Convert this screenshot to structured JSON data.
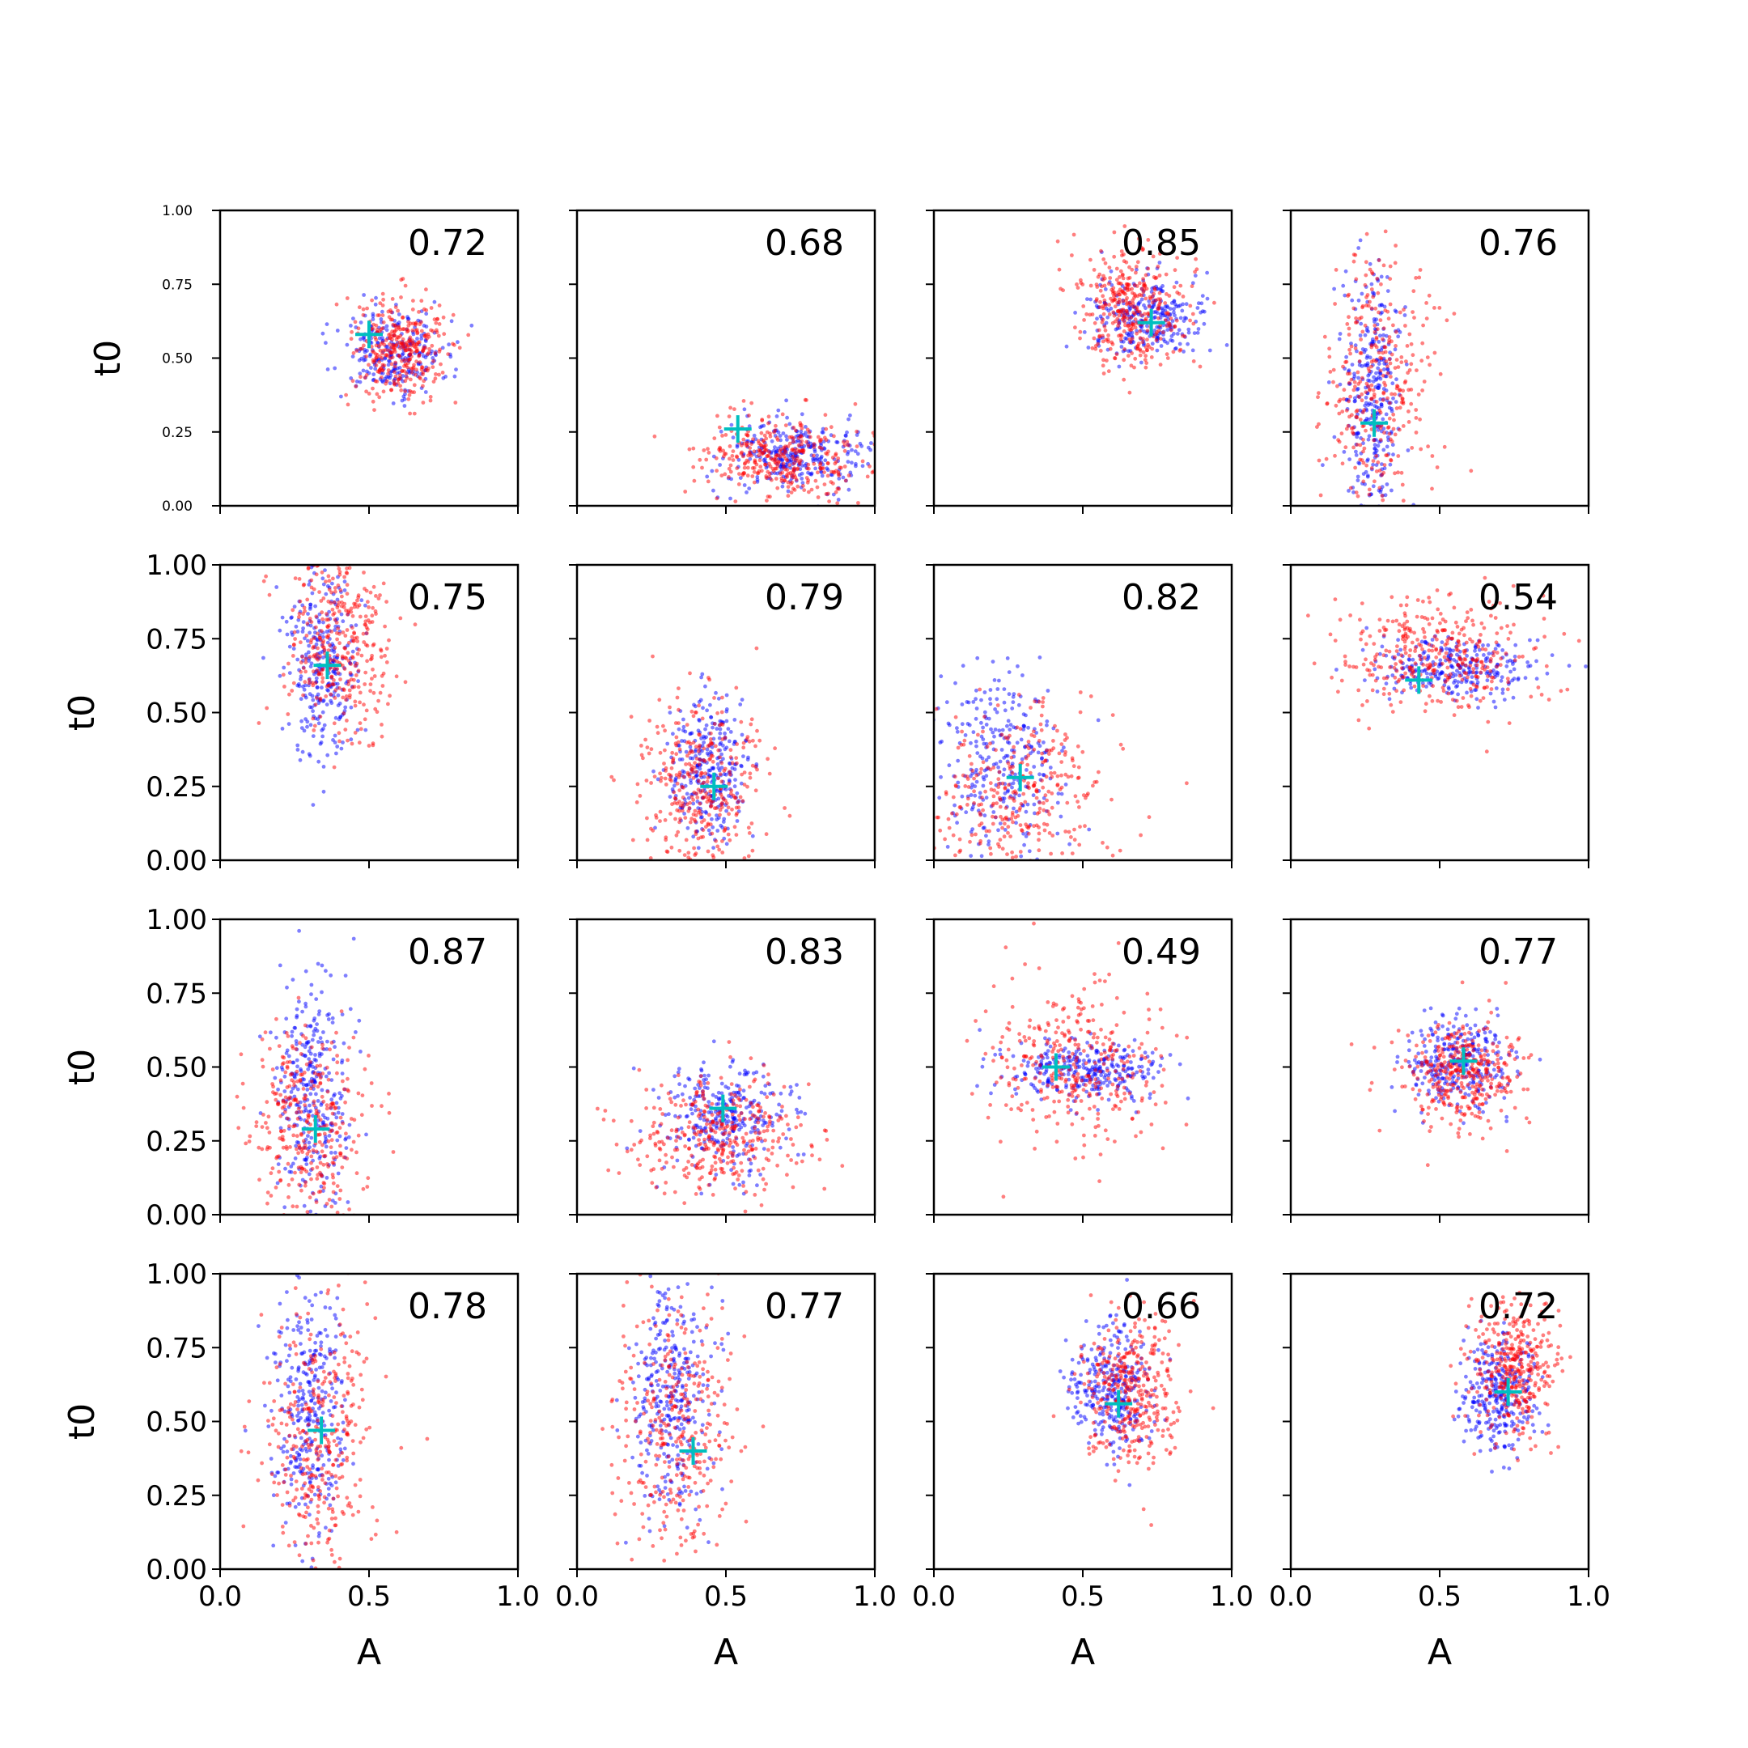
{
  "figure": {
    "colors": {
      "series_a": "#0000ff",
      "series_b": "#ff0000",
      "marker": "#00bfbf"
    },
    "xlabel": "A",
    "ylabel": "t0"
  },
  "chart_data": {
    "type": "scatter",
    "layout": "4x4 grid, shared x axes per column, y tick labels on first column",
    "xlim": [
      0,
      1
    ],
    "ylim": [
      0,
      1
    ],
    "xticks": [
      "0.0",
      "0.5",
      "1.0"
    ],
    "yticks": [
      "0.00",
      "0.25",
      "0.50",
      "0.75",
      "1.00"
    ],
    "panels": [
      {
        "score": "0.72",
        "marker": [
          0.5,
          0.58
        ],
        "clouds": [
          {
            "series": "a",
            "cx": 0.58,
            "cy": 0.52,
            "sx": 0.09,
            "sy": 0.07,
            "n": 260
          },
          {
            "series": "b",
            "cx": 0.6,
            "cy": 0.53,
            "sx": 0.08,
            "sy": 0.09,
            "n": 340
          }
        ]
      },
      {
        "score": "0.68",
        "marker": [
          0.54,
          0.26
        ],
        "clouds": [
          {
            "series": "a",
            "cx": 0.73,
            "cy": 0.17,
            "sx": 0.12,
            "sy": 0.06,
            "n": 300
          },
          {
            "series": "b",
            "cx": 0.7,
            "cy": 0.16,
            "sx": 0.14,
            "sy": 0.07,
            "n": 360
          }
        ]
      },
      {
        "score": "0.85",
        "marker": [
          0.73,
          0.62
        ],
        "clouds": [
          {
            "series": "a",
            "cx": 0.72,
            "cy": 0.63,
            "sx": 0.1,
            "sy": 0.07,
            "n": 280
          },
          {
            "series": "b",
            "cx": 0.66,
            "cy": 0.67,
            "sx": 0.09,
            "sy": 0.1,
            "n": 360
          }
        ]
      },
      {
        "score": "0.76",
        "marker": [
          0.28,
          0.28
        ],
        "clouds": [
          {
            "series": "a",
            "cx": 0.28,
            "cy": 0.35,
            "sx": 0.05,
            "sy": 0.22,
            "n": 320
          },
          {
            "series": "b",
            "cx": 0.3,
            "cy": 0.4,
            "sx": 0.09,
            "sy": 0.22,
            "n": 340
          }
        ]
      },
      {
        "score": "0.75",
        "marker": [
          0.36,
          0.66
        ],
        "clouds": [
          {
            "series": "a",
            "cx": 0.35,
            "cy": 0.68,
            "sx": 0.06,
            "sy": 0.16,
            "n": 300
          },
          {
            "series": "b",
            "cx": 0.4,
            "cy": 0.72,
            "sx": 0.09,
            "sy": 0.15,
            "n": 360
          }
        ]
      },
      {
        "score": "0.79",
        "marker": [
          0.46,
          0.25
        ],
        "clouds": [
          {
            "series": "a",
            "cx": 0.44,
            "cy": 0.3,
            "sx": 0.07,
            "sy": 0.13,
            "n": 300
          },
          {
            "series": "b",
            "cx": 0.42,
            "cy": 0.25,
            "sx": 0.11,
            "sy": 0.15,
            "n": 360
          }
        ]
      },
      {
        "score": "0.82",
        "marker": [
          0.29,
          0.28
        ],
        "clouds": [
          {
            "series": "a",
            "cx": 0.22,
            "cy": 0.32,
            "sx": 0.11,
            "sy": 0.16,
            "n": 300
          },
          {
            "series": "b",
            "cx": 0.28,
            "cy": 0.22,
            "sx": 0.15,
            "sy": 0.16,
            "n": 340
          }
        ]
      },
      {
        "score": "0.54",
        "marker": [
          0.43,
          0.61
        ],
        "clouds": [
          {
            "series": "a",
            "cx": 0.55,
            "cy": 0.65,
            "sx": 0.13,
            "sy": 0.05,
            "n": 280
          },
          {
            "series": "b",
            "cx": 0.5,
            "cy": 0.7,
            "sx": 0.15,
            "sy": 0.1,
            "n": 360
          }
        ]
      },
      {
        "score": "0.87",
        "marker": [
          0.32,
          0.29
        ],
        "clouds": [
          {
            "series": "a",
            "cx": 0.31,
            "cy": 0.38,
            "sx": 0.06,
            "sy": 0.2,
            "n": 320
          },
          {
            "series": "b",
            "cx": 0.3,
            "cy": 0.3,
            "sx": 0.1,
            "sy": 0.18,
            "n": 340
          }
        ]
      },
      {
        "score": "0.83",
        "marker": [
          0.49,
          0.36
        ],
        "clouds": [
          {
            "series": "a",
            "cx": 0.5,
            "cy": 0.33,
            "sx": 0.1,
            "sy": 0.09,
            "n": 300
          },
          {
            "series": "b",
            "cx": 0.47,
            "cy": 0.27,
            "sx": 0.14,
            "sy": 0.11,
            "n": 360
          }
        ]
      },
      {
        "score": "0.49",
        "marker": [
          0.41,
          0.5
        ],
        "clouds": [
          {
            "series": "a",
            "cx": 0.52,
            "cy": 0.49,
            "sx": 0.13,
            "sy": 0.05,
            "n": 300
          },
          {
            "series": "b",
            "cx": 0.48,
            "cy": 0.52,
            "sx": 0.16,
            "sy": 0.14,
            "n": 340
          }
        ]
      },
      {
        "score": "0.77",
        "marker": [
          0.58,
          0.52
        ],
        "clouds": [
          {
            "series": "a",
            "cx": 0.56,
            "cy": 0.51,
            "sx": 0.09,
            "sy": 0.08,
            "n": 300
          },
          {
            "series": "b",
            "cx": 0.58,
            "cy": 0.48,
            "sx": 0.1,
            "sy": 0.09,
            "n": 360
          }
        ]
      },
      {
        "score": "0.78",
        "marker": [
          0.34,
          0.47
        ],
        "clouds": [
          {
            "series": "a",
            "cx": 0.3,
            "cy": 0.55,
            "sx": 0.06,
            "sy": 0.2,
            "n": 320
          },
          {
            "series": "b",
            "cx": 0.33,
            "cy": 0.45,
            "sx": 0.09,
            "sy": 0.22,
            "n": 340
          }
        ]
      },
      {
        "score": "0.77",
        "marker": [
          0.39,
          0.4
        ],
        "clouds": [
          {
            "series": "a",
            "cx": 0.32,
            "cy": 0.58,
            "sx": 0.07,
            "sy": 0.2,
            "n": 320
          },
          {
            "series": "b",
            "cx": 0.34,
            "cy": 0.48,
            "sx": 0.11,
            "sy": 0.22,
            "n": 340
          }
        ]
      },
      {
        "score": "0.66",
        "marker": [
          0.62,
          0.56
        ],
        "clouds": [
          {
            "series": "a",
            "cx": 0.6,
            "cy": 0.6,
            "sx": 0.07,
            "sy": 0.11,
            "n": 300
          },
          {
            "series": "b",
            "cx": 0.66,
            "cy": 0.6,
            "sx": 0.08,
            "sy": 0.12,
            "n": 360
          }
        ]
      },
      {
        "score": "0.72",
        "marker": [
          0.73,
          0.6
        ],
        "clouds": [
          {
            "series": "a",
            "cx": 0.7,
            "cy": 0.6,
            "sx": 0.06,
            "sy": 0.1,
            "n": 300
          },
          {
            "series": "b",
            "cx": 0.75,
            "cy": 0.68,
            "sx": 0.07,
            "sy": 0.12,
            "n": 360
          }
        ]
      }
    ]
  }
}
